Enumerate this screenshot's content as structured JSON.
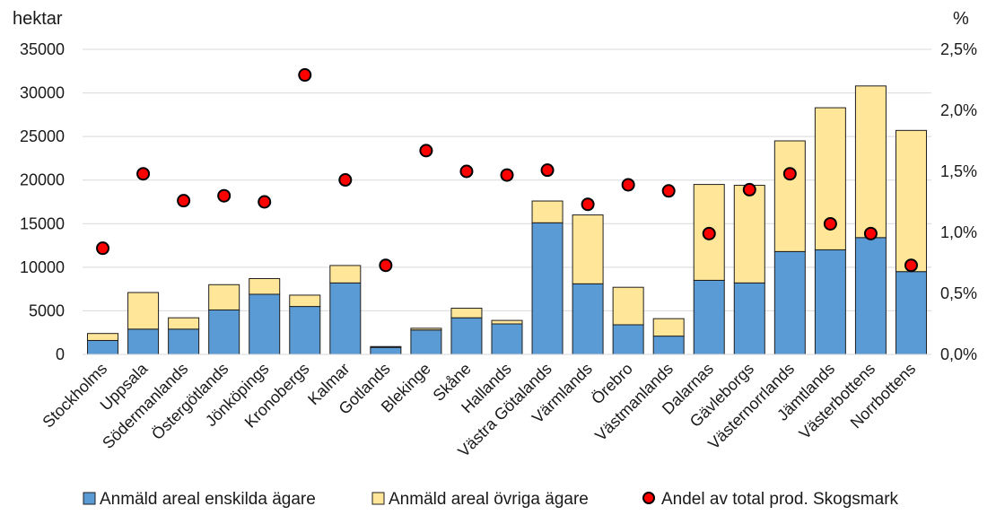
{
  "chart_data": {
    "type": "bar",
    "stacked": true,
    "left_axis_label": "hektar",
    "right_axis_label": "%",
    "left_ylim": [
      0,
      35000
    ],
    "left_ticks": [
      0,
      5000,
      10000,
      15000,
      20000,
      25000,
      30000,
      35000
    ],
    "left_tick_labels": [
      "0",
      "5000",
      "10000",
      "15000",
      "20000",
      "25000",
      "30000",
      "35000"
    ],
    "right_ylim": [
      0,
      2.5
    ],
    "right_ticks": [
      0,
      0.5,
      1.0,
      1.5,
      2.0,
      2.5
    ],
    "right_tick_labels": [
      "0,0%",
      "0,5%",
      "1,0%",
      "1,5%",
      "2,0%",
      "2,5%"
    ],
    "grid": "horizontal",
    "legend_position": "bottom",
    "categories": [
      "Stockholms",
      "Uppsala",
      "Södermanlands",
      "Östergötlands",
      "Jönköpings",
      "Kronobergs",
      "Kalmar",
      "Gotlands",
      "Blekinge",
      "Skåne",
      "Hallands",
      "Västra Götalands",
      "Värmlands",
      "Örebro",
      "Västmanlands",
      "Dalarnas",
      "Gävleborgs",
      "Västernorrlands",
      "Jämtlands",
      "Västerbottens",
      "Norrbottens"
    ],
    "series": [
      {
        "name": "Anmäld areal enskilda ägare",
        "kind": "bar",
        "axis": "left",
        "color": "#5b9bd5",
        "values": [
          1600,
          2900,
          2900,
          5100,
          6900,
          5500,
          8200,
          800,
          2800,
          4200,
          3500,
          15100,
          8100,
          3400,
          2100,
          8500,
          8200,
          11800,
          12000,
          13400,
          9500
        ]
      },
      {
        "name": "Anmäld areal övriga ägare",
        "kind": "bar",
        "axis": "left",
        "color": "#ffe699",
        "values": [
          800,
          4200,
          1300,
          2900,
          1800,
          1300,
          2000,
          100,
          200,
          1100,
          400,
          2500,
          7900,
          4300,
          2000,
          11000,
          11200,
          12700,
          16300,
          17400,
          16200
        ]
      },
      {
        "name": "Andel av total prod. Skogsmark",
        "kind": "scatter",
        "axis": "right",
        "color": "#ff0000",
        "values": [
          0.87,
          1.48,
          1.26,
          1.3,
          1.25,
          2.29,
          1.43,
          0.73,
          1.67,
          1.5,
          1.47,
          1.51,
          1.23,
          1.39,
          1.34,
          0.99,
          1.35,
          1.48,
          1.07,
          0.99,
          0.73
        ]
      }
    ]
  }
}
